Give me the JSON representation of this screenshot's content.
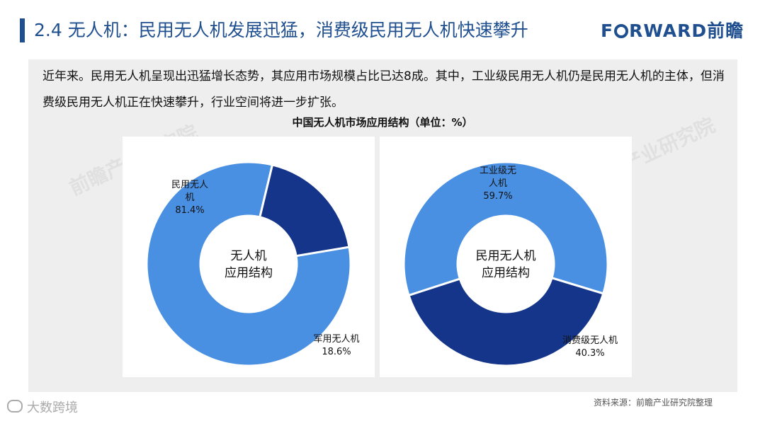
{
  "header": {
    "title": "2.4 无人机：民用无人机发展迅猛，消费级民用无人机快速攀升",
    "logo_before": "F",
    "logo_after": "RWARD前瞻",
    "accent": "#1f4f8f"
  },
  "intro": {
    "text": "近年来。民用无人机呈现出迅猛增长态势，其应用市场规模占比已达8成。其中，工业级民用无人机仍是民用无人机的主体，但消费级民用无人机正在快速攀升，行业空间将进一步扩张。"
  },
  "chart_title": "中国无人机市场应用结构（单位：%）",
  "chart_data": [
    {
      "type": "pie",
      "donut": true,
      "center_label": [
        "无人机",
        "应用结构"
      ],
      "slices": [
        {
          "label": [
            "民用无人",
            "机"
          ],
          "value": 81.4,
          "value_label": "81.4%",
          "color": "#4a90e2"
        },
        {
          "label": [
            "军用无人机"
          ],
          "value": 18.6,
          "value_label": "18.6%",
          "color": "#14358a"
        }
      ]
    },
    {
      "type": "pie",
      "donut": true,
      "center_label": [
        "民用无人机",
        "应用结构"
      ],
      "slices": [
        {
          "label": [
            "工业级无",
            "人机"
          ],
          "value": 59.7,
          "value_label": "59.7%",
          "color": "#4a90e2"
        },
        {
          "label": [
            "消费级无人机"
          ],
          "value": 40.3,
          "value_label": "40.3%",
          "color": "#14358a"
        }
      ]
    }
  ],
  "footer": {
    "source": "资料来源：前瞻产业研究院整理",
    "bottom_logo": "大数跨境",
    "watermark": "前瞻产业研究院"
  }
}
